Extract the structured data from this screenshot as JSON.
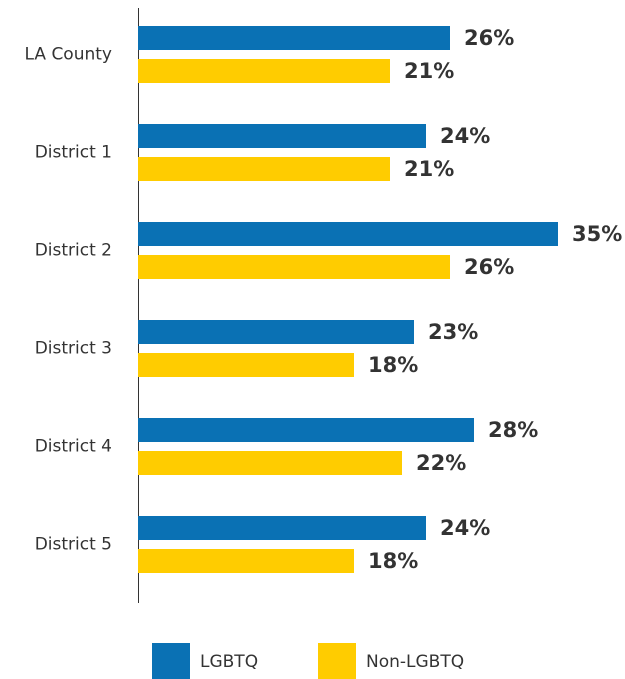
{
  "chart_data": {
    "type": "bar",
    "orientation": "horizontal",
    "categories": [
      "LA County",
      "District 1",
      "District 2",
      "District 3",
      "District 4",
      "District 5"
    ],
    "series": [
      {
        "name": "LGBTQ",
        "color": "#0a71b4",
        "values": [
          26,
          24,
          35,
          23,
          28,
          24
        ],
        "value_labels": [
          "26%",
          "24%",
          "35%",
          "23%",
          "28%",
          "24%"
        ]
      },
      {
        "name": "Non-LGBTQ",
        "color": "#ffcc00",
        "values": [
          21,
          21,
          26,
          18,
          22,
          18
        ],
        "value_labels": [
          "21%",
          "21%",
          "26%",
          "18%",
          "22%",
          "18%"
        ]
      }
    ],
    "xlim": [
      0,
      40
    ],
    "legend": "bottom"
  }
}
